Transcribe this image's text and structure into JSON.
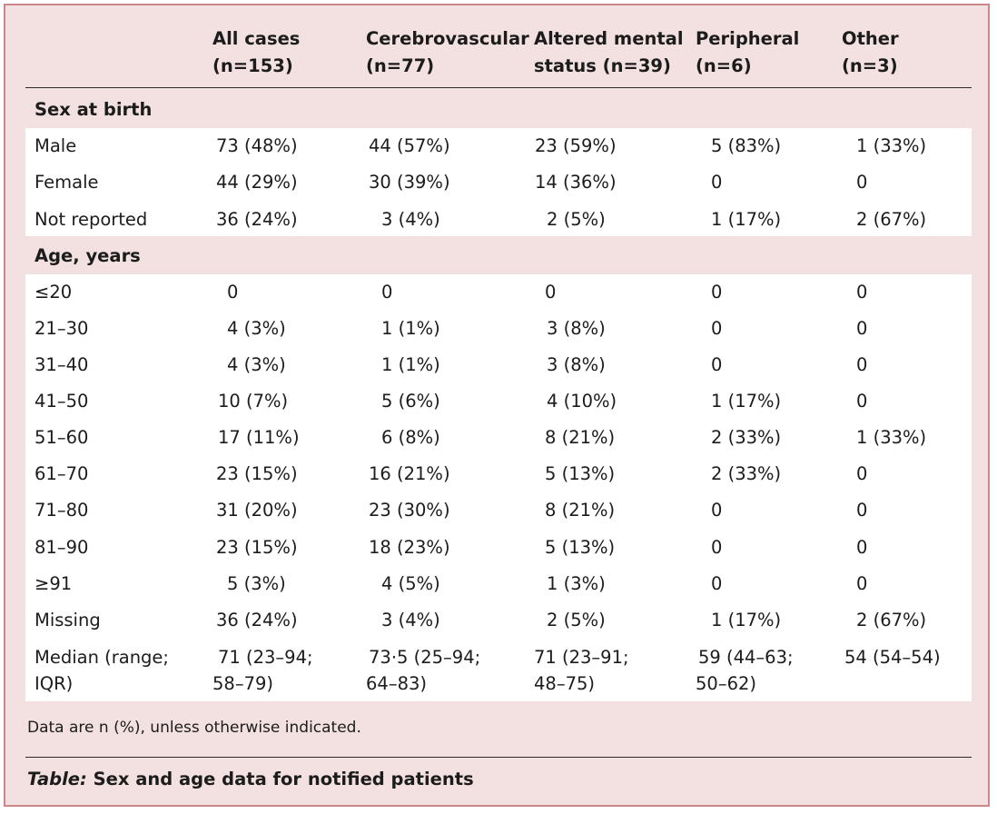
{
  "columns": [
    {
      "line1": "All cases",
      "line2": "(n=153)"
    },
    {
      "line1": "Cerebrovascular",
      "line2": "(n=77)"
    },
    {
      "line1": "Altered mental",
      "line2": "status (n=39)"
    },
    {
      "line1": "Peripheral",
      "line2": "(n=6)"
    },
    {
      "line1": "Other",
      "line2": "(n=3)"
    }
  ],
  "sections": [
    {
      "title": "Sex at birth",
      "rows": [
        {
          "label": "Male",
          "values": [
            "73 (48%)",
            "44 (57%)",
            "23 (59%)",
            "5 (83%)",
            "1 (33%)"
          ]
        },
        {
          "label": "Female",
          "values": [
            "44 (29%)",
            "30 (39%)",
            "14 (36%)",
            "0",
            "0"
          ]
        },
        {
          "label": "Not reported",
          "values": [
            "36 (24%)",
            "3 (4%)",
            "2 (5%)",
            "1 (17%)",
            "2 (67%)"
          ]
        }
      ]
    },
    {
      "title": "Age, years",
      "rows": [
        {
          "label": "≤20",
          "values": [
            "0",
            "0",
            "0",
            "0",
            "0"
          ]
        },
        {
          "label": "21–30",
          "values": [
            "4 (3%)",
            "1 (1%)",
            "3 (8%)",
            "0",
            "0"
          ]
        },
        {
          "label": "31–40",
          "values": [
            "4 (3%)",
            "1 (1%)",
            "3 (8%)",
            "0",
            "0"
          ]
        },
        {
          "label": "41–50",
          "values": [
            "10 (7%)",
            "5 (6%)",
            "4 (10%)",
            "1 (17%)",
            "0"
          ]
        },
        {
          "label": "51–60",
          "values": [
            "17 (11%)",
            "6 (8%)",
            "8 (21%)",
            "2 (33%)",
            "1 (33%)"
          ]
        },
        {
          "label": "61–70",
          "values": [
            "23 (15%)",
            "16 (21%)",
            "5 (13%)",
            "2 (33%)",
            "0"
          ]
        },
        {
          "label": "71–80",
          "values": [
            "31 (20%)",
            "23 (30%)",
            "8 (21%)",
            "0",
            "0"
          ]
        },
        {
          "label": "81–90",
          "values": [
            "23 (15%)",
            "18 (23%)",
            "5 (13%)",
            "0",
            "0"
          ]
        },
        {
          "label": "≥91",
          "values": [
            "5 (3%)",
            "4 (5%)",
            "1 (3%)",
            "0",
            "0"
          ]
        },
        {
          "label": "Missing",
          "values": [
            "36 (24%)",
            "3 (4%)",
            "2 (5%)",
            "1 (17%)",
            "2 (67%)"
          ]
        }
      ],
      "median_row": {
        "label_line1": "Median (range;",
        "label_line2": "IQR)",
        "values": [
          {
            "line1": "71 (23–94;",
            "line2": "58–79)"
          },
          {
            "line1": "73·5 (25–94;",
            "line2": "64–83)"
          },
          {
            "line1": "71 (23–91;",
            "line2": "48–75)"
          },
          {
            "line1": "59 (44–63;",
            "line2": "50–62)"
          },
          {
            "line1": "54 (54–54)",
            "line2": ""
          }
        ]
      }
    }
  ],
  "footnote": "Data are n (%), unless otherwise indicated.",
  "caption": {
    "prefix": "Table:",
    "text": " Sex and age data for notified patients"
  },
  "colors": {
    "panel_background": "#f3e1e1",
    "panel_border": "#c9878c",
    "row_band": "#ffffff",
    "text": "#1c1c1c"
  }
}
